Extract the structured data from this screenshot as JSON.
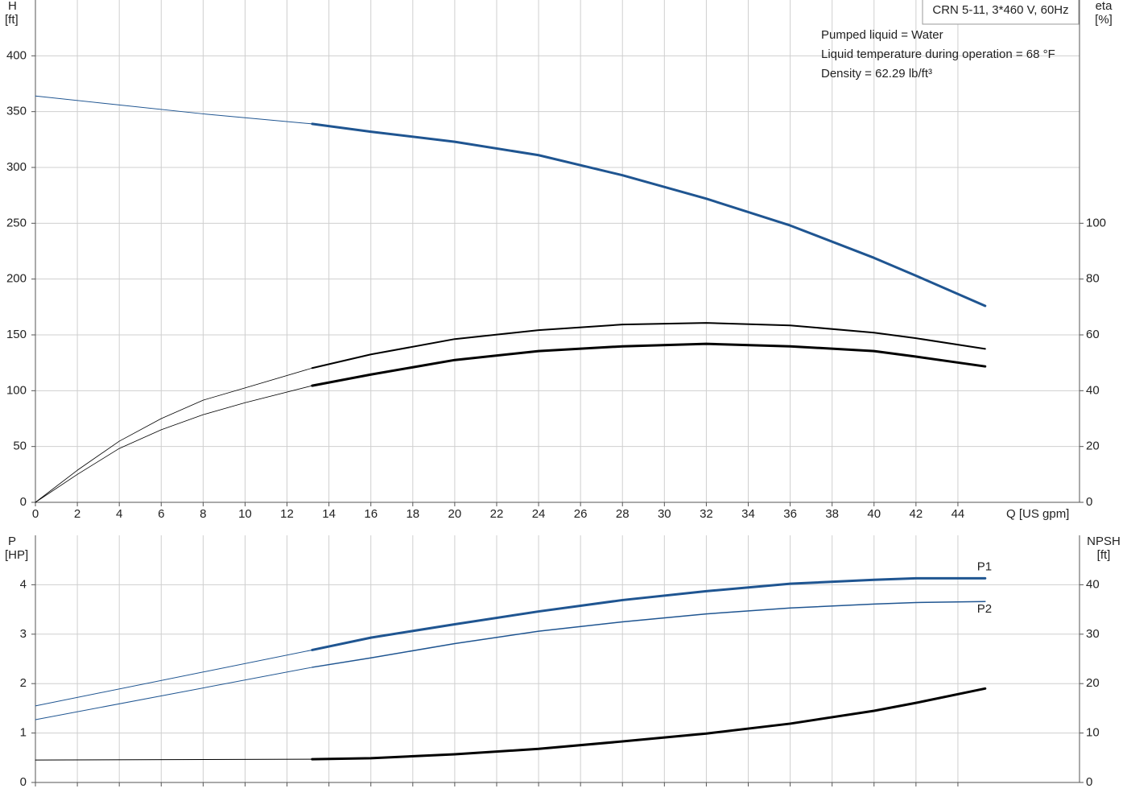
{
  "chart_data": [
    {
      "type": "line",
      "title": "CRN 5-11, 3*460 V, 60Hz",
      "annotations": [
        "Pumped liquid = Water",
        "Liquid temperature during operation = 68 °F",
        "Density = 62.29 lb/ft³"
      ],
      "x_label": "Q [US gpm]",
      "y_label": [
        "H",
        "[ft]"
      ],
      "y2_label": [
        "eta",
        "[%]"
      ],
      "xlim": [
        0,
        49.8
      ],
      "xticks": [
        0,
        2,
        4,
        6,
        8,
        10,
        12,
        14,
        16,
        18,
        20,
        22,
        24,
        26,
        28,
        30,
        32,
        34,
        36,
        38,
        40,
        42,
        44
      ],
      "ylim": [
        0,
        450
      ],
      "yticks": [
        0,
        50,
        100,
        150,
        200,
        250,
        300,
        350,
        400
      ],
      "y2lim": [
        0,
        180
      ],
      "y2ticks": [
        0,
        20,
        40,
        60,
        80,
        100
      ],
      "grid": true,
      "series": [
        {
          "color": "#1f5591",
          "width": 1,
          "axis": "y",
          "x": [
            0,
            4,
            8,
            13.2
          ],
          "values": [
            364,
            356,
            348,
            339
          ]
        },
        {
          "color": "#1f5591",
          "width": 3,
          "axis": "y",
          "x": [
            13.2,
            16,
            20,
            24,
            28,
            32,
            36,
            40,
            42,
            45.3
          ],
          "values": [
            339,
            332,
            323,
            311,
            293,
            272,
            248,
            219,
            203,
            176
          ]
        },
        {
          "color": "#000000",
          "width": 0.8,
          "axis": "y2",
          "x": [
            0,
            2,
            4,
            6,
            8,
            10,
            13.2
          ],
          "values": [
            0,
            11.5,
            21.9,
            30,
            36.6,
            41,
            48.1
          ]
        },
        {
          "color": "#000000",
          "width": 2,
          "axis": "y2",
          "x": [
            13.2,
            16,
            20,
            24,
            28,
            32,
            36,
            40,
            42,
            45.3
          ],
          "values": [
            48.1,
            53,
            58.5,
            61.7,
            63.7,
            64.3,
            63.4,
            60.8,
            58.8,
            55
          ]
        },
        {
          "color": "#000000",
          "width": 0.8,
          "axis": "y2",
          "x": [
            0,
            2,
            4,
            6,
            8,
            10,
            13.2
          ],
          "values": [
            0,
            10,
            19.3,
            26,
            31.4,
            35.7,
            41.8
          ]
        },
        {
          "color": "#000000",
          "width": 3,
          "axis": "y2",
          "x": [
            13.2,
            16,
            20,
            24,
            28,
            32,
            36,
            40,
            42,
            45.3
          ],
          "values": [
            41.8,
            45.8,
            51,
            54.2,
            55.9,
            56.8,
            55.9,
            54.2,
            52.2,
            48.7
          ]
        }
      ]
    },
    {
      "type": "line",
      "y_label": [
        "P",
        "[HP]"
      ],
      "y2_label": [
        "NPSH",
        "[ft]"
      ],
      "xlim": [
        0,
        49.8
      ],
      "xticks": [
        0,
        2,
        4,
        6,
        8,
        10,
        12,
        14,
        16,
        18,
        20,
        22,
        24,
        26,
        28,
        30,
        32,
        34,
        36,
        38,
        40,
        42,
        44
      ],
      "ylim": [
        0,
        5
      ],
      "yticks": [
        0,
        1,
        2,
        3,
        4
      ],
      "y2lim": [
        0,
        50
      ],
      "y2ticks": [
        0,
        10,
        20,
        30,
        40
      ],
      "grid": true,
      "series": [
        {
          "color": "#1f5591",
          "width": 1,
          "axis": "y",
          "x": [
            0,
            13.2
          ],
          "values": [
            1.55,
            2.68
          ]
        },
        {
          "name": "P1",
          "label_position": "above",
          "color": "#1f5591",
          "width": 3,
          "axis": "y",
          "x": [
            13.2,
            16,
            20,
            24,
            28,
            32,
            36,
            40,
            42,
            45.3
          ],
          "values": [
            2.68,
            2.93,
            3.2,
            3.46,
            3.69,
            3.87,
            4.02,
            4.1,
            4.13,
            4.13
          ]
        },
        {
          "color": "#1f5591",
          "width": 1,
          "axis": "y",
          "x": [
            0,
            13.2
          ],
          "values": [
            1.27,
            2.33
          ]
        },
        {
          "name": "P2",
          "label_position": "below",
          "color": "#1f5591",
          "width": 1.5,
          "axis": "y",
          "x": [
            13.2,
            16,
            20,
            24,
            28,
            32,
            36,
            40,
            42,
            45.3
          ],
          "values": [
            2.33,
            2.52,
            2.81,
            3.06,
            3.25,
            3.41,
            3.53,
            3.61,
            3.64,
            3.66
          ]
        },
        {
          "color": "#000000",
          "width": 1,
          "axis": "y2",
          "x": [
            0,
            13.2
          ],
          "values": [
            4.55,
            4.7
          ]
        },
        {
          "color": "#000000",
          "width": 3,
          "axis": "y2",
          "x": [
            13.2,
            16,
            20,
            24,
            28,
            32,
            36,
            40,
            42,
            45.3
          ],
          "values": [
            4.7,
            4.9,
            5.7,
            6.8,
            8.3,
            9.9,
            11.9,
            14.5,
            16.1,
            19.0
          ]
        }
      ]
    }
  ]
}
